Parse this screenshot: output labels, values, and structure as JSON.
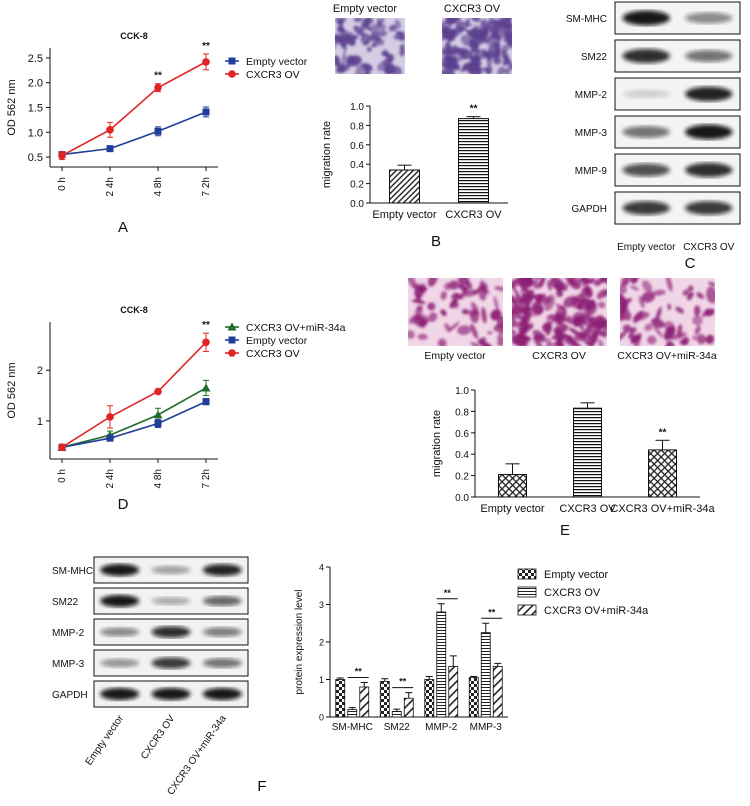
{
  "panel_labels": {
    "A": "A",
    "B": "B",
    "C": "C",
    "D": "D",
    "E": "E",
    "F": "F"
  },
  "significance": "**",
  "chart_data": [
    {
      "id": "A",
      "type": "line",
      "title": "CCK-8",
      "xlabel": "",
      "ylabel": "OD 562 nm",
      "categories": [
        "0 h",
        "2 4h",
        "4 8h",
        "7 2h"
      ],
      "ylim": [
        0.3,
        2.7
      ],
      "yticks": [
        0.5,
        1.0,
        1.5,
        2.0,
        2.5
      ],
      "ytick_labels": [
        "0.5",
        "1.0",
        "1.5",
        "2.0",
        "2.5"
      ],
      "legend_position": "top-right",
      "series": [
        {
          "name": "Empty vector",
          "marker": "square",
          "color": "#1f3f9a",
          "values": [
            0.55,
            0.67,
            1.02,
            1.41
          ],
          "errors": [
            0.06,
            0.04,
            0.09,
            0.1
          ]
        },
        {
          "name": "CXCR3 OV",
          "marker": "circle",
          "color": "#e02424",
          "values": [
            0.53,
            1.05,
            1.9,
            2.42
          ],
          "errors": [
            0.08,
            0.15,
            0.08,
            0.16
          ]
        }
      ],
      "annotations": [
        {
          "category": "4 8h",
          "text": "**"
        },
        {
          "category": "7 2h",
          "text": "**"
        }
      ]
    },
    {
      "id": "B",
      "type": "bar",
      "xlabel": "",
      "ylabel": "migration rate",
      "categories": [
        "Empty vector",
        "CXCR3 OV"
      ],
      "values": [
        0.34,
        0.87
      ],
      "errors": [
        0.05,
        0.02
      ],
      "ylim": [
        0,
        1.0
      ],
      "yticks": [
        0,
        0.2,
        0.4,
        0.6,
        0.8,
        1.0
      ],
      "ytick_labels": [
        "0.0",
        "0.2",
        "0.4",
        "0.6",
        "0.8",
        "1.0"
      ],
      "annotations": [
        {
          "category": "CXCR3 OV",
          "text": "**"
        }
      ]
    },
    {
      "id": "D",
      "type": "line",
      "title": "CCK-8",
      "xlabel": "",
      "ylabel": "OD 562 nm",
      "categories": [
        "0 h",
        "2 4h",
        "4 8h",
        "7 2h"
      ],
      "ylim": [
        0.25,
        2.95
      ],
      "yticks": [
        1,
        2
      ],
      "ytick_labels": [
        "1",
        "2"
      ],
      "legend_position": "top-right",
      "series": [
        {
          "name": "CXCR3 OV+miR-34a",
          "marker": "triangle",
          "color": "#1f6b2a",
          "values": [
            0.48,
            0.72,
            1.12,
            1.65
          ],
          "errors": [
            0.04,
            0.08,
            0.13,
            0.15
          ]
        },
        {
          "name": "Empty vector",
          "marker": "square",
          "color": "#1f3f9a",
          "values": [
            0.48,
            0.66,
            0.95,
            1.38
          ],
          "errors": [
            0.04,
            0.05,
            0.08,
            0.06
          ]
        },
        {
          "name": "CXCR3 OV",
          "marker": "circle",
          "color": "#e02424",
          "values": [
            0.48,
            1.08,
            1.58,
            2.55
          ],
          "errors": [
            0.06,
            0.22,
            0.02,
            0.18
          ]
        }
      ],
      "annotations": [
        {
          "category": "7 2h",
          "text": "**"
        }
      ]
    },
    {
      "id": "E",
      "type": "bar",
      "xlabel": "",
      "ylabel": "migration rate",
      "categories": [
        "Empty vector",
        "CXCR3 OV",
        "CXCR3 OV+miR-34a"
      ],
      "values": [
        0.21,
        0.83,
        0.44
      ],
      "errors": [
        0.1,
        0.05,
        0.09
      ],
      "ylim": [
        0,
        1.0
      ],
      "yticks": [
        0,
        0.2,
        0.4,
        0.6,
        0.8,
        1.0
      ],
      "ytick_labels": [
        "0.0",
        "0.2",
        "0.4",
        "0.6",
        "0.8",
        "1.0"
      ],
      "annotations": [
        {
          "category": "CXCR3 OV+miR-34a",
          "text": "**"
        }
      ]
    },
    {
      "id": "F",
      "type": "bar",
      "xlabel": "",
      "ylabel": "protein expression level",
      "categories": [
        "SM-MHC",
        "SM22",
        "MMP-2",
        "MMP-3"
      ],
      "ylim": [
        0,
        4
      ],
      "yticks": [
        0,
        1,
        2,
        3,
        4
      ],
      "ytick_labels": [
        "0",
        "1",
        "2",
        "3",
        "4"
      ],
      "legend_position": "top-right",
      "series": [
        {
          "name": "Empty vector",
          "pattern": "checker",
          "values": [
            1.0,
            0.95,
            1.0,
            1.05
          ],
          "errors": [
            0.04,
            0.07,
            0.08,
            0.03
          ]
        },
        {
          "name": "CXCR3 OV",
          "pattern": "hlines",
          "values": [
            0.2,
            0.15,
            2.8,
            2.25
          ],
          "errors": [
            0.05,
            0.06,
            0.22,
            0.25
          ]
        },
        {
          "name": "CXCR3 OV+miR-34a",
          "pattern": "diag",
          "values": [
            0.8,
            0.5,
            1.35,
            1.35
          ],
          "errors": [
            0.12,
            0.15,
            0.28,
            0.08
          ]
        }
      ],
      "annotations": [
        {
          "category": "SM-MHC",
          "text": "**"
        },
        {
          "category": "SM22",
          "text": "**"
        },
        {
          "category": "MMP-2",
          "text": "**"
        },
        {
          "category": "MMP-3",
          "text": "**"
        }
      ]
    }
  ],
  "micrographs_B": [
    "Empty vector",
    "CXCR3 OV"
  ],
  "micrographs_E": [
    "Empty vector",
    "CXCR3 OV",
    "CXCR3 OV+miR-34a"
  ],
  "blot_C": {
    "rows": [
      "SM-MHC",
      "SM22",
      "MMP-2",
      "MMP-3",
      "MMP-9",
      "GAPDH"
    ],
    "lanes": [
      "Empty vector",
      "CXCR3 OV"
    ]
  },
  "blot_F": {
    "rows": [
      "SM-MHC",
      "SM22",
      "MMP-2",
      "MMP-3",
      "GAPDH"
    ],
    "lanes": [
      "Empty vector",
      "CXCR3 OV",
      "CXCR3 OV+miR-34a"
    ]
  }
}
